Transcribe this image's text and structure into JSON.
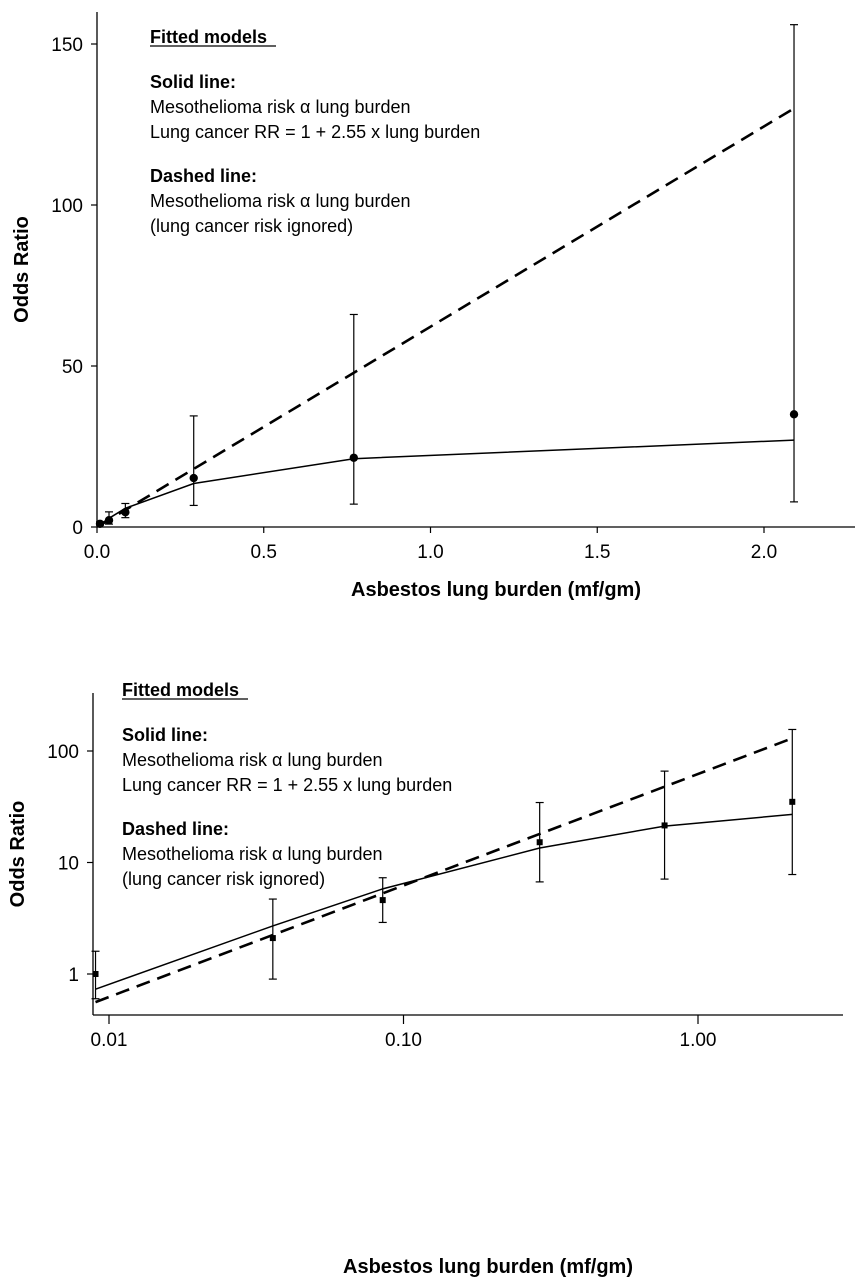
{
  "chart_data": [
    {
      "type": "line",
      "xlabel": "Asbestos lung burden (mf/gm)",
      "ylabel": "Odds Ratio",
      "xlim": [
        0,
        2.2
      ],
      "ylim": [
        0,
        160
      ],
      "x_ticks": [
        "0.0",
        "0.5",
        "1.0",
        "1.5",
        "2.0"
      ],
      "y_ticks": [
        "0",
        "50",
        "100",
        "150"
      ],
      "annotation": {
        "heading": "Fitted models",
        "solid_title": "Solid line:",
        "solid_line1": "Mesothelioma risk α lung burden",
        "solid_line2": "Lung cancer RR = 1 + 2.55  x lung burden",
        "dashed_title": "Dashed line:",
        "dashed_line1": "Mesothelioma risk α lung burden",
        "dashed_line2": "(lung cancer risk ignored)"
      },
      "points": [
        {
          "x": 0.009,
          "y": 1.0,
          "low": 0.6,
          "high": 1.6
        },
        {
          "x": 0.036,
          "y": 2.1,
          "low": 0.9,
          "high": 4.7
        },
        {
          "x": 0.085,
          "y": 4.6,
          "low": 2.9,
          "high": 7.3
        },
        {
          "x": 0.29,
          "y": 15.2,
          "low": 6.7,
          "high": 34.5
        },
        {
          "x": 0.77,
          "y": 21.5,
          "low": 7.1,
          "high": 66.0
        },
        {
          "x": 2.09,
          "y": 35.0,
          "low": 7.8,
          "high": 156.0
        }
      ],
      "solid_curve": [
        {
          "x": 0.009,
          "y": 0.73
        },
        {
          "x": 0.036,
          "y": 2.7
        },
        {
          "x": 0.085,
          "y": 5.8
        },
        {
          "x": 0.29,
          "y": 13.5
        },
        {
          "x": 0.77,
          "y": 21.2
        },
        {
          "x": 2.09,
          "y": 27.0
        }
      ],
      "dashed_curve": [
        {
          "x": 0.009,
          "y": 0.56
        },
        {
          "x": 2.09,
          "y": 130.0
        }
      ]
    },
    {
      "type": "line",
      "xlabel": "Asbestos lung burden (mf/gm)",
      "ylabel": "Odds Ratio",
      "x_scale": "log",
      "y_scale": "log",
      "xlim": [
        0.0085,
        3.0
      ],
      "ylim": [
        0.5,
        200
      ],
      "x_ticks": [
        "0.01",
        "0.10",
        "1.00"
      ],
      "y_ticks": [
        "1",
        "10",
        "100"
      ],
      "annotation": {
        "heading": "Fitted models",
        "solid_title": "Solid line:",
        "solid_line1": "Mesothelioma risk α lung burden",
        "solid_line2": "Lung cancer RR = 1 + 2.55  x lung burden",
        "dashed_title": "Dashed line:",
        "dashed_line1": "Mesothelioma risk α lung burden",
        "dashed_line2": "(lung cancer risk ignored)"
      },
      "points": [
        {
          "x": 0.009,
          "y": 1.0,
          "low": 0.6,
          "high": 1.6
        },
        {
          "x": 0.036,
          "y": 2.1,
          "low": 0.9,
          "high": 4.7
        },
        {
          "x": 0.085,
          "y": 4.6,
          "low": 2.9,
          "high": 7.3
        },
        {
          "x": 0.29,
          "y": 15.2,
          "low": 6.7,
          "high": 34.5
        },
        {
          "x": 0.77,
          "y": 21.5,
          "low": 7.1,
          "high": 66.0
        },
        {
          "x": 2.09,
          "y": 35.0,
          "low": 7.8,
          "high": 156.0
        }
      ],
      "solid_curve": [
        {
          "x": 0.009,
          "y": 0.73
        },
        {
          "x": 0.036,
          "y": 2.7
        },
        {
          "x": 0.085,
          "y": 5.8
        },
        {
          "x": 0.29,
          "y": 13.5
        },
        {
          "x": 0.77,
          "y": 21.2
        },
        {
          "x": 2.09,
          "y": 27.0
        }
      ],
      "dashed_curve": [
        {
          "x": 0.009,
          "y": 0.56
        },
        {
          "x": 2.09,
          "y": 130.0
        }
      ]
    }
  ]
}
